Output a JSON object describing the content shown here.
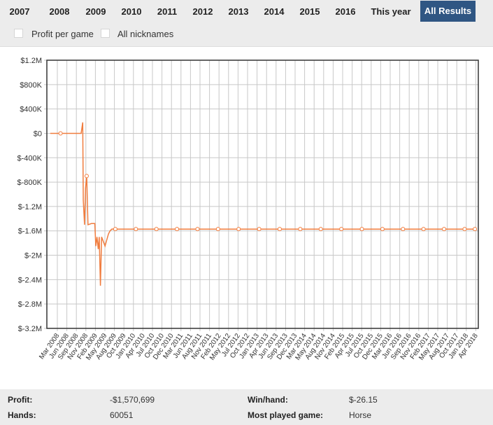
{
  "tabs": [
    {
      "label": "2007",
      "active": false
    },
    {
      "label": "2008",
      "active": false
    },
    {
      "label": "2009",
      "active": false
    },
    {
      "label": "2010",
      "active": false
    },
    {
      "label": "2011",
      "active": false
    },
    {
      "label": "2012",
      "active": false
    },
    {
      "label": "2013",
      "active": false
    },
    {
      "label": "2014",
      "active": false
    },
    {
      "label": "2015",
      "active": false
    },
    {
      "label": "2016",
      "active": false
    },
    {
      "label": "This year",
      "active": false
    },
    {
      "label": "All Results",
      "active": true
    }
  ],
  "options": {
    "profit_per_game": {
      "label": "Profit per game",
      "checked": false
    },
    "all_nicknames": {
      "label": "All nicknames",
      "checked": false
    }
  },
  "chart_data": {
    "type": "line",
    "title": "",
    "xlabel": "",
    "ylabel": "",
    "grid": true,
    "line_color": "#f07c3e",
    "ylim": [
      -3200000,
      1200000
    ],
    "y_ticks": [
      1200000,
      800000,
      400000,
      0,
      -400000,
      -800000,
      -1200000,
      -1600000,
      -2000000,
      -2400000,
      -2800000,
      -3200000
    ],
    "y_tick_labels": [
      "$1.2M",
      "$800K",
      "$400K",
      "$0",
      "$-400K",
      "$-800K",
      "$-1.2M",
      "$-1.6M",
      "$-2M",
      "$-2.4M",
      "$-2.8M",
      "$-3.2M"
    ],
    "x_tick_labels": [
      "Mar 2008",
      "Jun 2008",
      "Sep 2008",
      "Nov 2008",
      "Feb 2009",
      "May 2009",
      "Aug 2009",
      "Oct 2009",
      "Jan 2010",
      "Apr 2010",
      "Jul 2010",
      "Oct 2010",
      "Dec 2010",
      "Mar 2011",
      "Jun 2011",
      "Aug 2011",
      "Nov 2011",
      "Feb 2012",
      "May 2012",
      "Jul 2012",
      "Oct 2012",
      "Jan 2013",
      "Apr 2013",
      "Jun 2013",
      "Sep 2013",
      "Dec 2013",
      "Mar 2014",
      "May 2014",
      "Aug 2014",
      "Nov 2014",
      "Feb 2015",
      "Apr 2015",
      "Jul 2015",
      "Oct 2015",
      "Dec 2015",
      "Mar 2016",
      "Jun 2016",
      "Sep 2016",
      "Nov 2016",
      "Feb 2017",
      "May 2017",
      "Aug 2017",
      "Oct 2017",
      "Jan 2018",
      "Apr 2018"
    ],
    "series": [
      {
        "x": [
          "2008-01",
          "2008-04",
          "2008-10",
          "2008-10-15",
          "2008-10-20",
          "2008-11",
          "2008-11-10",
          "2008-11-20",
          "2008-12",
          "2009-01",
          "2009-02",
          "2009-02-10",
          "2009-02-20",
          "2009-03",
          "2009-03-10",
          "2009-03-20",
          "2009-04",
          "2009-05",
          "2009-06",
          "2009-06-15",
          "2009-07",
          "2009-08",
          "2010-02",
          "2010-08",
          "2011-02",
          "2011-08",
          "2012-02",
          "2012-08",
          "2013-02",
          "2013-08",
          "2014-02",
          "2014-08",
          "2015-02",
          "2015-08",
          "2016-02",
          "2016-08",
          "2017-02",
          "2017-08",
          "2018-02",
          "2018-05"
        ],
        "y": [
          0,
          0,
          0,
          180000,
          -1100000,
          -1500000,
          -900000,
          -700000,
          -1500000,
          -1480000,
          -1480000,
          -1850000,
          -1700000,
          -1900000,
          -1700000,
          -2500000,
          -1700000,
          -1850000,
          -1650000,
          -1600000,
          -1570000,
          -1570699,
          -1570699,
          -1570699,
          -1570699,
          -1570699,
          -1570699,
          -1570699,
          -1570699,
          -1570699,
          -1570699,
          -1570699,
          -1570699,
          -1570699,
          -1570699,
          -1570699,
          -1570699,
          -1570699,
          -1570699,
          -1570699
        ],
        "markers": [
          "2008-04",
          "2008-11-20",
          "2009-08",
          "2010-02",
          "2010-08",
          "2011-02",
          "2011-08",
          "2012-02",
          "2012-08",
          "2013-02",
          "2013-08",
          "2014-02",
          "2014-08",
          "2015-02",
          "2015-08",
          "2016-02",
          "2016-08",
          "2017-02",
          "2017-08",
          "2018-02",
          "2018-05"
        ]
      }
    ]
  },
  "stats": {
    "profit_label": "Profit:",
    "profit_value": "-$1,570,699",
    "winhand_label": "Win/hand:",
    "winhand_value": "$-26.15",
    "hands_label": "Hands:",
    "hands_value": "60051",
    "game_label": "Most played game:",
    "game_value": "Horse"
  }
}
